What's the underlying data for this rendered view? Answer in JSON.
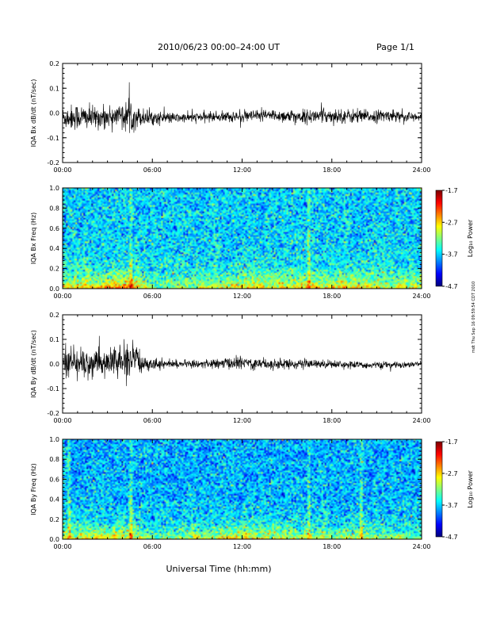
{
  "header": {
    "title": "2010/06/23  00:00–24:00 UT",
    "page": "Page 1/1"
  },
  "footer": {
    "xlabel": "Universal Time (hh:mm)",
    "stamp": "mdt Thu Sep 16 09:59:54 CDT 2010"
  },
  "chart_data": [
    {
      "type": "line",
      "ylabel": "IQA Bx dB/dt (nT/sec)",
      "x_ticks": [
        "00:00",
        "06:00",
        "12:00",
        "18:00",
        "24:00"
      ],
      "y_ticks": [
        "-0.2",
        "-0.1",
        "0.0",
        "0.1",
        "0.2"
      ],
      "xlim": [
        0,
        24
      ],
      "ylim": [
        -0.2,
        0.2
      ],
      "series": [
        {
          "hours": [
            0,
            1,
            2,
            3,
            4,
            4.5,
            5,
            6,
            8,
            10,
            12,
            14,
            16,
            18,
            20,
            22,
            24
          ],
          "center": [
            -0.02,
            -0.015,
            -0.02,
            -0.015,
            -0.01,
            -0.01,
            -0.015,
            -0.02,
            -0.02,
            -0.015,
            -0.015,
            -0.01,
            -0.015,
            -0.01,
            -0.015,
            -0.01,
            -0.02
          ],
          "amplitude": [
            0.05,
            0.06,
            0.05,
            0.045,
            0.06,
            0.08,
            0.045,
            0.03,
            0.02,
            0.022,
            0.025,
            0.028,
            0.03,
            0.032,
            0.03,
            0.025,
            0.022
          ]
        }
      ],
      "color": "#000000"
    },
    {
      "type": "heatmap",
      "ylabel": "IQA Bx Freq (Hz)",
      "x_ticks": [
        "00:00",
        "06:00",
        "12:00",
        "18:00",
        "24:00"
      ],
      "y_ticks": [
        "0.0",
        "0.2",
        "0.4",
        "0.6",
        "0.8",
        "1.0"
      ],
      "xlim": [
        0,
        24
      ],
      "ylim": [
        0,
        1.0
      ],
      "colorbar": {
        "label": "Log₁₀ Power",
        "ticks": [
          "-1.7",
          "-2.7",
          "-3.7",
          "-4.7"
        ],
        "range": [
          -4.7,
          -1.7
        ]
      },
      "background_power": -3.7,
      "low_freq_power_by_hour": {
        "hours": [
          0,
          4.5,
          6,
          9,
          12,
          15,
          18,
          21,
          24
        ],
        "power": [
          -2.8,
          -2.4,
          -3.2,
          -3.0,
          -2.8,
          -2.7,
          -2.7,
          -2.8,
          -2.9
        ]
      },
      "vertical_streaks_hours": [
        4.5,
        16.5
      ]
    },
    {
      "type": "line",
      "ylabel": "IQA By dB/dt (nT/sec)",
      "x_ticks": [
        "00:00",
        "06:00",
        "12:00",
        "18:00",
        "24:00"
      ],
      "y_ticks": [
        "-0.2",
        "-0.1",
        "0.0",
        "0.1",
        "0.2"
      ],
      "xlim": [
        0,
        24
      ],
      "ylim": [
        -0.2,
        0.2
      ],
      "series": [
        {
          "hours": [
            0,
            1,
            2,
            3,
            4,
            4.8,
            5.5,
            6,
            8,
            10,
            12,
            14,
            16,
            18,
            20,
            22,
            24
          ],
          "center": [
            0.01,
            0.005,
            0.0,
            0.005,
            0.01,
            0.01,
            0.005,
            0.0,
            0.0,
            0.0,
            0.005,
            0.0,
            0.0,
            0.0,
            -0.005,
            -0.005,
            0.0
          ],
          "amplitude": [
            0.07,
            0.08,
            0.06,
            0.06,
            0.07,
            0.08,
            0.04,
            0.025,
            0.015,
            0.02,
            0.03,
            0.025,
            0.02,
            0.018,
            0.015,
            0.015,
            0.012
          ]
        }
      ],
      "color": "#000000"
    },
    {
      "type": "heatmap",
      "ylabel": "IQA By Freq (Hz)",
      "x_ticks": [
        "00:00",
        "06:00",
        "12:00",
        "18:00",
        "24:00"
      ],
      "y_ticks": [
        "0.0",
        "0.2",
        "0.4",
        "0.6",
        "0.8",
        "1.0"
      ],
      "xlim": [
        0,
        24
      ],
      "ylim": [
        0,
        1.0
      ],
      "colorbar": {
        "label": "Log₁₀ Power",
        "ticks": [
          "-1.7",
          "-2.7",
          "-3.7",
          "-4.7"
        ],
        "range": [
          -4.7,
          -1.7
        ]
      },
      "background_power": -3.8,
      "low_freq_power_by_hour": {
        "hours": [
          0,
          4.5,
          6,
          9,
          12,
          15,
          18,
          21,
          24
        ],
        "power": [
          -2.9,
          -2.7,
          -3.3,
          -3.0,
          -2.7,
          -3.0,
          -3.0,
          -3.1,
          -3.2
        ]
      },
      "vertical_streaks_hours": [
        0.4,
        4.5,
        16.5,
        20
      ]
    }
  ]
}
